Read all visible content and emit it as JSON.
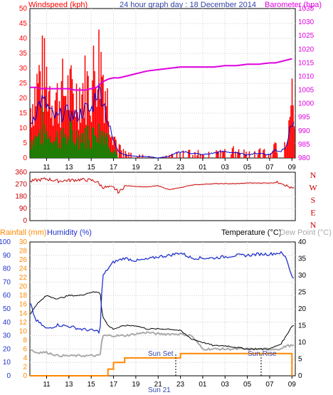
{
  "header": {
    "left_label": "Windspeed (kph)",
    "title": "24 hour graph day : 18 December 2014",
    "right_label": "Barometer (hpa)"
  },
  "colors": {
    "windspeed": "#ff0000",
    "wind_avg": "#0000cc",
    "wind_low": "#008800",
    "barometer": "#e000e0",
    "direction": "#cc0000",
    "rainfall": "#ff8800",
    "humidity": "#2233cc",
    "temperature": "#000000",
    "dewpoint": "#aaaaaa",
    "title_blue": "#3344aa"
  },
  "x_ticks": [
    "11",
    "13",
    "15",
    "17",
    "19",
    "21",
    "23",
    "01",
    "03",
    "05",
    "07",
    "09"
  ],
  "wind_axis": {
    "left_ticks": [
      "0",
      "5",
      "10",
      "15",
      "20",
      "25",
      "30",
      "35",
      "40",
      "45",
      "50"
    ],
    "right_ticks": [
      "980",
      "985",
      "990",
      "995",
      "1000",
      "1005",
      "1010",
      "1015",
      "1020",
      "1025",
      "1030",
      "1035"
    ]
  },
  "direction_axis": {
    "ticks": [
      "360",
      "270",
      "180",
      "90",
      "0"
    ],
    "letters": [
      "N",
      "W",
      "S",
      "E",
      "N"
    ]
  },
  "bottom_header": {
    "rain_label": "Rainfall (mm)",
    "humidity_label": "Humidity (%)",
    "temp_label": "Temperature (°C)",
    "dew_label": "Dew Point (°C)"
  },
  "bottom_axis": {
    "humidity_ticks": [
      "0",
      "10",
      "20",
      "30",
      "40",
      "50",
      "60",
      "70",
      "80",
      "90",
      "100"
    ],
    "rain_ticks": [
      "0",
      "2",
      "4",
      "6",
      "8",
      "10",
      "12",
      "14",
      "16",
      "18",
      "20",
      "22",
      "24",
      "26",
      "28",
      "30"
    ],
    "temp_ticks": [
      "0",
      "5",
      "10",
      "15",
      "20",
      "25",
      "30",
      "35",
      "40"
    ]
  },
  "annotations": {
    "sunset": "Sun Set",
    "sunrise": "Sun Rise",
    "midnight": "Sun 21"
  },
  "chart_data": [
    {
      "type": "bar",
      "title": "24 hour graph day : 18 December 2014",
      "ylabel": "Windspeed (kph)",
      "y2label": "Barometer (hpa)",
      "ylim": [
        0,
        50
      ],
      "y2lim": [
        980,
        1035
      ],
      "x_hours": [
        9.5,
        10,
        10.5,
        11,
        11.5,
        12,
        12.5,
        13,
        13.5,
        14,
        14.5,
        15,
        15.5,
        16,
        16.5,
        17,
        17.5,
        18,
        19,
        20,
        21,
        22,
        23,
        24,
        25,
        26,
        27,
        28,
        29,
        30,
        31,
        31.5,
        32,
        32.5,
        33
      ],
      "series": [
        {
          "name": "Windspeed (kph)",
          "values": [
            20,
            28,
            35,
            32,
            26,
            24,
            28,
            27,
            25,
            27,
            30,
            28,
            42,
            38,
            22,
            10,
            4,
            2,
            1,
            1,
            0,
            1,
            4,
            3,
            2,
            3,
            4,
            3,
            2,
            3,
            2,
            5,
            4,
            8,
            22
          ]
        },
        {
          "name": "Barometer (hpa)",
          "values": [
            1006,
            1006,
            1005.5,
            1005.5,
            1005.5,
            1005.5,
            1005.5,
            1005.5,
            1005,
            1005,
            1005,
            1005.5,
            1006,
            1008,
            1009,
            1009.5,
            1009.5,
            1010,
            1011,
            1012,
            1012.5,
            1013,
            1013.5,
            1013.5,
            1013.5,
            1013.5,
            1014,
            1014,
            1014.5,
            1014.5,
            1015,
            1015,
            1015.5,
            1016,
            1016.5
          ]
        }
      ]
    },
    {
      "type": "line",
      "ylabel": "Wind direction",
      "ylim": [
        0,
        360
      ],
      "x_hours": [
        9.5,
        10,
        11,
        12,
        13,
        14,
        15,
        15.5,
        16,
        17,
        17.5,
        18,
        19,
        20,
        21,
        22,
        23,
        24,
        25,
        26,
        27,
        28,
        29,
        30,
        31,
        32,
        32.5,
        33
      ],
      "series": [
        {
          "name": "Direction",
          "values": [
            290,
            300,
            310,
            295,
            300,
            305,
            300,
            290,
            250,
            245,
            210,
            260,
            255,
            250,
            260,
            230,
            245,
            265,
            270,
            275,
            275,
            275,
            280,
            280,
            280,
            285,
            260,
            240
          ]
        }
      ]
    },
    {
      "type": "line",
      "ylabel": "Humidity (%)",
      "y2label": "Temperature (°C)",
      "ylim": [
        0,
        100
      ],
      "y2lim": [
        0,
        40
      ],
      "x_hours": [
        9.5,
        10,
        11,
        12,
        13,
        14,
        15,
        15.8,
        16,
        16.5,
        17,
        18,
        19,
        20,
        21,
        22,
        23,
        24,
        25,
        26,
        27,
        28,
        29,
        30,
        31,
        32,
        32.5,
        33
      ],
      "series": [
        {
          "name": "Humidity (%)",
          "values": [
            55,
            42,
            35,
            38,
            37,
            35,
            34,
            33,
            74,
            80,
            85,
            88,
            86,
            87,
            89,
            90,
            92,
            88,
            88,
            88,
            89,
            90,
            90,
            91,
            91,
            92,
            88,
            74
          ]
        },
        {
          "name": "Temperature (°C)",
          "values": [
            18,
            21,
            24,
            23,
            24,
            24,
            25,
            25,
            18,
            15,
            14,
            15,
            15,
            14,
            14,
            14,
            13.5,
            11,
            10,
            9,
            9,
            8.5,
            8,
            8,
            8,
            9.5,
            12,
            15
          ]
        },
        {
          "name": "Dew Point (°C)",
          "values": [
            8,
            7,
            7,
            6,
            6,
            6,
            6,
            6,
            12,
            12,
            12,
            12,
            12.5,
            13,
            12.5,
            12.5,
            12.5,
            12,
            8,
            8,
            8,
            8,
            8,
            8,
            8,
            8,
            9,
            9
          ]
        },
        {
          "name": "Rainfall (mm)",
          "values": [
            0,
            0,
            0,
            0,
            0,
            0,
            0,
            0,
            0,
            1.5,
            3,
            4,
            4,
            4,
            4,
            4,
            5,
            5,
            5,
            5,
            5,
            5,
            5,
            5,
            5,
            5,
            5,
            0
          ]
        }
      ]
    }
  ]
}
